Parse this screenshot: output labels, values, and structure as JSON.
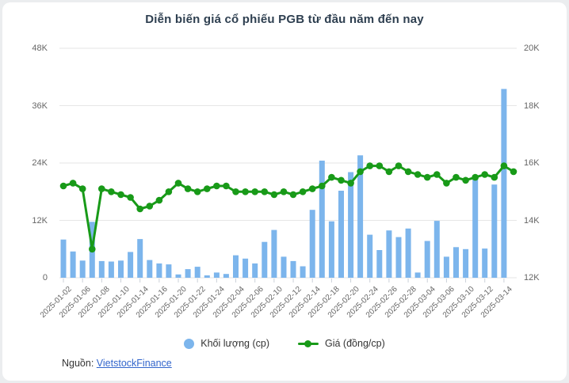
{
  "page": {
    "card_bg": "#ffffff",
    "page_bg": "#ebedef"
  },
  "header": {
    "title": "Diễn biến giá cổ phiếu PGB từ đầu năm đến nay",
    "title_color": "#2e3f50"
  },
  "legend": {
    "items": [
      {
        "label": "Khối lượng (cp)",
        "marker": "circle",
        "color": "#7cb5ec"
      },
      {
        "label": "Giá (đồng/cp)",
        "marker": "line-dot",
        "color": "#189a18"
      }
    ]
  },
  "footer": {
    "source_label": "Nguồn:",
    "source_link_text": "VietstockFinance",
    "link_color": "#3366cc"
  },
  "chart_data": {
    "type": "bar",
    "subtype": "dual-axis bar+line combo",
    "title": "Diễn biến giá cổ phiếu PGB từ đầu năm đến nay",
    "xlabel": "",
    "ylabel_left": "Khối lượng (cp)",
    "ylabel_right": "Giá (đồng/cp)",
    "grid": true,
    "gridline_color": "#e6e6e6",
    "tick_color": "#ccd1d9",
    "legend_position": "bottom",
    "x": [
      "2025-01-02",
      "2025-01-03",
      "2025-01-06",
      "2025-01-07",
      "2025-01-08",
      "2025-01-09",
      "2025-01-10",
      "2025-01-13",
      "2025-01-14",
      "2025-01-15",
      "2025-01-16",
      "2025-01-17",
      "2025-01-20",
      "2025-01-21",
      "2025-01-22",
      "2025-01-23",
      "2025-01-24",
      "2025-02-03",
      "2025-02-04",
      "2025-02-05",
      "2025-02-06",
      "2025-02-07",
      "2025-02-10",
      "2025-02-11",
      "2025-02-12",
      "2025-02-13",
      "2025-02-14",
      "2025-02-17",
      "2025-02-18",
      "2025-02-19",
      "2025-02-20",
      "2025-02-21",
      "2025-02-24",
      "2025-02-25",
      "2025-02-26",
      "2025-02-27",
      "2025-02-28",
      "2025-03-03",
      "2025-03-04",
      "2025-03-05",
      "2025-03-06",
      "2025-03-07",
      "2025-03-10",
      "2025-03-11",
      "2025-03-12",
      "2025-03-13",
      "2025-03-14",
      "2025-03-17"
    ],
    "x_tick_labels": [
      "2025-01-02",
      "2025-01-06",
      "2025-01-08",
      "2025-01-10",
      "2025-01-14",
      "2025-01-16",
      "2025-01-20",
      "2025-01-22",
      "2025-01-24",
      "2025-02-04",
      "2025-02-06",
      "2025-02-10",
      "2025-02-12",
      "2025-02-14",
      "2025-02-18",
      "2025-02-20",
      "2025-02-24",
      "2025-02-26",
      "2025-02-28",
      "2025-03-04",
      "2025-03-06",
      "2025-03-10",
      "2025-03-12",
      "2025-03-14"
    ],
    "x_label_every_n_points": 2,
    "series": [
      {
        "name": "Khối lượng (cp)",
        "type": "bar",
        "yaxis": "left",
        "color": "#7cb5ec",
        "values": [
          8000,
          5500,
          3600,
          11700,
          3500,
          3400,
          3600,
          5400,
          8100,
          3700,
          3000,
          2800,
          700,
          1800,
          2300,
          500,
          1100,
          800,
          4700,
          4000,
          3000,
          7500,
          10000,
          4400,
          3500,
          2400,
          14200,
          24500,
          11800,
          18200,
          22100,
          25600,
          9000,
          5800,
          9900,
          8500,
          10300,
          1100,
          7700,
          11900,
          4400,
          6400,
          6000,
          20800,
          6100,
          19500,
          39500,
          0
        ]
      },
      {
        "name": "Giá (đồng/cp)",
        "type": "line",
        "yaxis": "right",
        "color": "#189a18",
        "values": [
          15200,
          15300,
          15100,
          13000,
          15100,
          15000,
          14900,
          14800,
          14400,
          14500,
          14700,
          15000,
          15300,
          15100,
          15000,
          15100,
          15200,
          15200,
          15000,
          15000,
          15000,
          15000,
          14900,
          15000,
          14900,
          15000,
          15100,
          15200,
          15500,
          15400,
          15300,
          15700,
          15900,
          15900,
          15700,
          15900,
          15700,
          15600,
          15500,
          15600,
          15300,
          15500,
          15400,
          15500,
          15600,
          15500,
          15900,
          15700
        ]
      }
    ],
    "left_axis": {
      "min": 0,
      "max": 48000,
      "tick_step": 12000,
      "tick_labels": [
        "0",
        "12K",
        "24K",
        "36K",
        "48K"
      ]
    },
    "right_axis": {
      "min": 12000,
      "max": 20000,
      "tick_step": 2000,
      "tick_labels": [
        "12K",
        "14K",
        "16K",
        "18K",
        "20K"
      ]
    }
  }
}
